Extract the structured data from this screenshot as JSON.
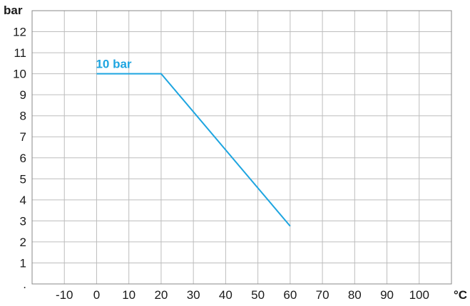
{
  "chart_data": {
    "type": "line",
    "ylabel": "bar",
    "xlabel": "°C",
    "x_ticks": [
      "-10",
      "0",
      "10",
      "20",
      "30",
      "40",
      "50",
      "60",
      "70",
      "80",
      "90",
      "100"
    ],
    "y_ticks": [
      "12",
      "11",
      "10",
      "9",
      "8",
      "7",
      "6",
      "5",
      "4",
      "3",
      "2",
      "1",
      "."
    ],
    "xlim": [
      -20,
      110
    ],
    "ylim": [
      0,
      13
    ],
    "grid": true,
    "series": [
      {
        "x": [
          0,
          20,
          60
        ],
        "y": [
          10,
          10,
          2.75
        ]
      }
    ],
    "annotation": {
      "text": "10 bar",
      "x": 0,
      "y": 10
    },
    "colors": {
      "line": "#1ea5e0",
      "annotation": "#1ea5e0",
      "grid": "#bdbdbd",
      "frame": "#888888",
      "text": "#1a1a1a"
    }
  }
}
